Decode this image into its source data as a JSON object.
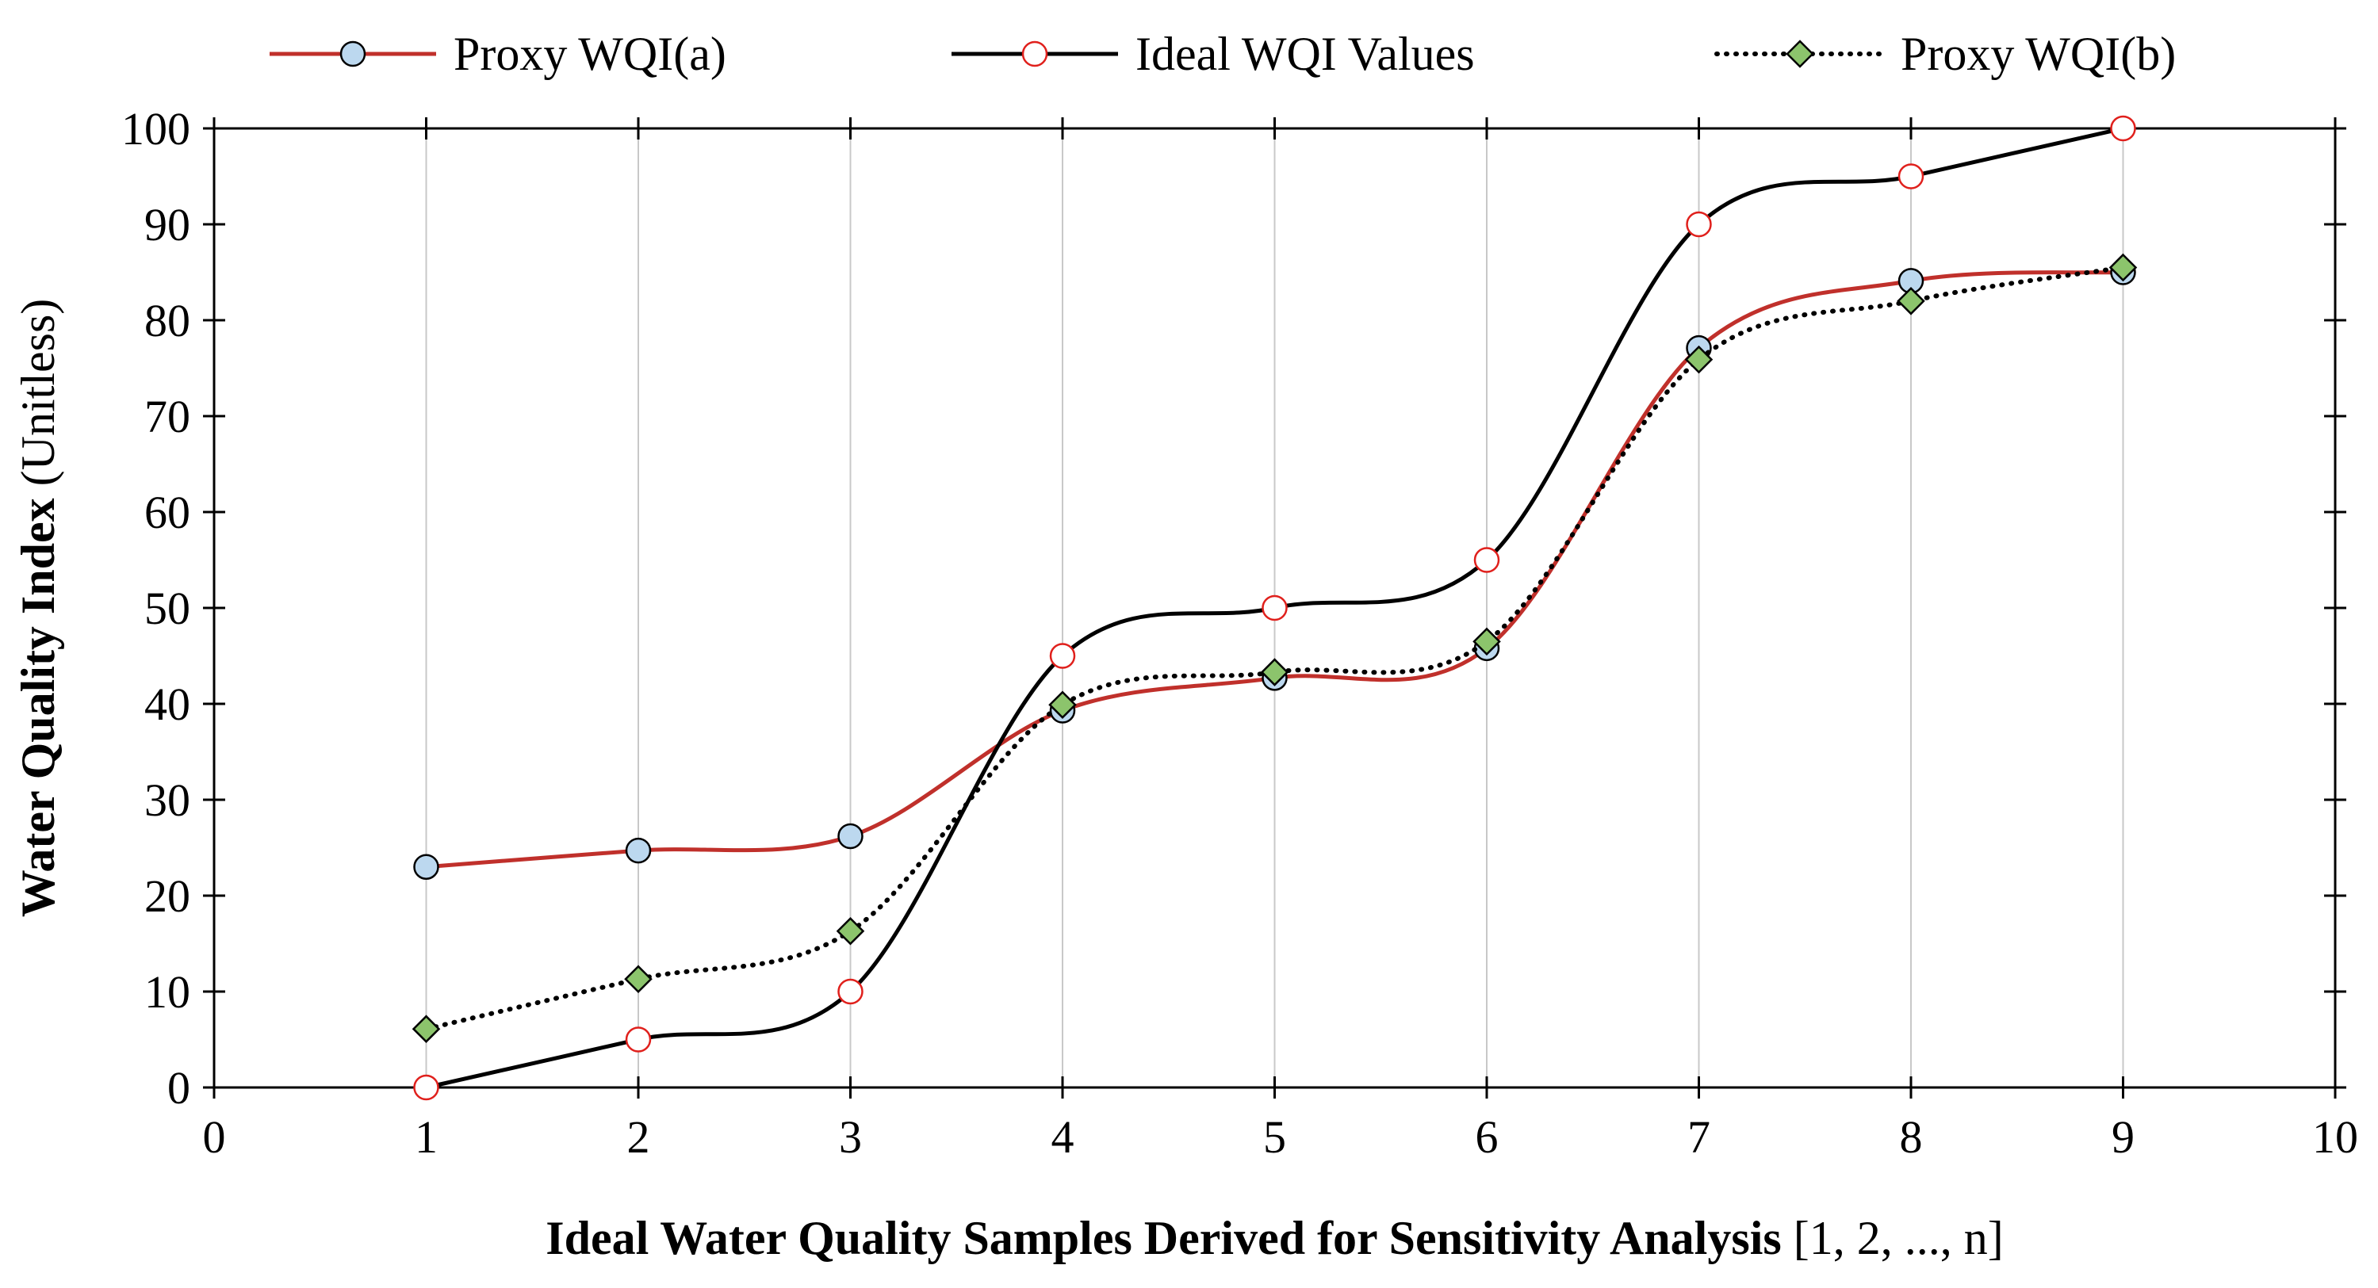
{
  "chart_data": {
    "type": "line",
    "title": "",
    "xlabel_bold": "Ideal Water Quality Samples Derived for Sensitivity Analysis",
    "xlabel_rest": " [1, 2, ..., n]",
    "ylabel_bold": "Water Quality Index",
    "ylabel_rest": " (Unitless)",
    "xlim": [
      0,
      10
    ],
    "ylim": [
      0,
      100
    ],
    "xticks": [
      0,
      1,
      2,
      3,
      4,
      5,
      6,
      7,
      8,
      9,
      10
    ],
    "yticks": [
      0,
      10,
      20,
      30,
      40,
      50,
      60,
      70,
      80,
      90,
      100
    ],
    "grid": "vertical",
    "legend_position": "top",
    "series": [
      {
        "name": "Proxy WQI(a)",
        "line_color": "#c0302b",
        "line_style": "solid",
        "marker": "circle",
        "marker_fill": "#bcd8ef",
        "marker_stroke": "#000000",
        "x": [
          1,
          2,
          3,
          4,
          5,
          6,
          7,
          8,
          9
        ],
        "y": [
          23.0,
          24.7,
          26.2,
          39.3,
          42.7,
          45.8,
          77.1,
          84.1,
          85.0
        ]
      },
      {
        "name": "Ideal WQI Values",
        "line_color": "#000000",
        "line_style": "solid",
        "marker": "circle",
        "marker_fill": "#ffffff",
        "marker_stroke": "#e0201c",
        "x": [
          1,
          2,
          3,
          4,
          5,
          6,
          7,
          8,
          9
        ],
        "y": [
          0,
          5,
          10,
          45,
          50,
          55,
          90,
          95,
          100
        ]
      },
      {
        "name": "Proxy WQI(b)",
        "line_color": "#000000",
        "line_style": "dotted",
        "marker": "diamond",
        "marker_fill": "#8cc46c",
        "marker_stroke": "#000000",
        "x": [
          1,
          2,
          3,
          4,
          5,
          6,
          7,
          8,
          9
        ],
        "y": [
          6.1,
          11.3,
          16.3,
          39.9,
          43.3,
          46.5,
          75.9,
          82.0,
          85.5
        ]
      }
    ]
  }
}
